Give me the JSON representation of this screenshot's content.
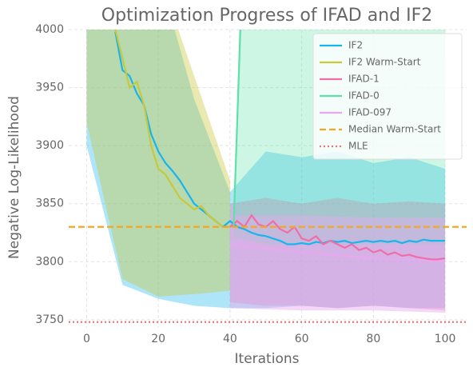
{
  "chart_data": {
    "type": "line",
    "title": "Optimization Progress of IFAD and IF2",
    "xlabel": "Iterations",
    "ylabel": "Negative Log-Likelihood",
    "xlim": [
      -5,
      106
    ],
    "ylim": [
      3743,
      4000
    ],
    "xticks": [
      0,
      20,
      40,
      60,
      80,
      100
    ],
    "yticks": [
      3750,
      3800,
      3850,
      3900,
      3950,
      4000
    ],
    "grid": true,
    "legend": "upper right",
    "series": [
      {
        "name": "IF2",
        "color": "#18b4ee",
        "x": [
          8,
          10,
          12,
          14,
          16,
          18,
          20,
          22,
          24,
          26,
          28,
          30,
          32,
          34,
          36,
          38,
          40,
          42,
          44,
          46,
          48,
          50,
          52,
          54,
          56,
          58,
          60,
          62,
          64,
          66,
          68,
          70,
          72,
          74,
          76,
          78,
          80,
          82,
          84,
          86,
          88,
          90,
          92,
          94,
          96,
          98,
          100
        ],
        "values": [
          3998,
          3965,
          3960,
          3945,
          3935,
          3910,
          3895,
          3885,
          3878,
          3870,
          3860,
          3850,
          3845,
          3840,
          3835,
          3830,
          3835,
          3830,
          3828,
          3825,
          3823,
          3822,
          3820,
          3818,
          3815,
          3815,
          3816,
          3815,
          3817,
          3816,
          3818,
          3817,
          3818,
          3816,
          3817,
          3818,
          3817,
          3818,
          3817,
          3818,
          3816,
          3818,
          3817,
          3819,
          3818,
          3818,
          3818
        ],
        "band": {
          "x": [
            0,
            10,
            20,
            30,
            40,
            50,
            60,
            70,
            80,
            90,
            100
          ],
          "lower": [
            3900,
            3780,
            3768,
            3762,
            3760,
            3760,
            3762,
            3760,
            3762,
            3760,
            3760
          ],
          "upper": [
            4050,
            4050,
            4050,
            3940,
            3860,
            3895,
            3890,
            3895,
            3885,
            3890,
            3880
          ]
        }
      },
      {
        "name": "IF2 Warm-Start",
        "color": "#c8c83c",
        "x": [
          8,
          10,
          12,
          14,
          16,
          18,
          20,
          22,
          24,
          26,
          28,
          30,
          32,
          34,
          36,
          38,
          40
        ],
        "values": [
          4000,
          3975,
          3950,
          3955,
          3935,
          3900,
          3880,
          3875,
          3865,
          3855,
          3850,
          3845,
          3848,
          3840,
          3835,
          3830,
          3830
        ],
        "band": {
          "x": [
            0,
            10,
            20,
            30,
            40
          ],
          "lower": [
            3920,
            3785,
            3770,
            3772,
            3775
          ],
          "upper": [
            4050,
            4050,
            4050,
            3960,
            3870
          ]
        }
      },
      {
        "name": "IFAD-1",
        "color": "#f06ea8",
        "x": [
          40,
          42,
          44,
          46,
          48,
          50,
          52,
          54,
          56,
          58,
          60,
          62,
          64,
          66,
          68,
          70,
          72,
          74,
          76,
          78,
          80,
          82,
          84,
          86,
          88,
          90,
          92,
          94,
          96,
          98,
          100
        ],
        "values": [
          3830,
          3835,
          3830,
          3840,
          3832,
          3830,
          3835,
          3828,
          3825,
          3830,
          3820,
          3818,
          3822,
          3815,
          3818,
          3815,
          3812,
          3815,
          3810,
          3812,
          3808,
          3810,
          3806,
          3808,
          3805,
          3806,
          3804,
          3803,
          3802,
          3802,
          3803
        ],
        "band": {
          "x": [
            40,
            50,
            60,
            70,
            80,
            90,
            100
          ],
          "lower": [
            3765,
            3762,
            3762,
            3760,
            3762,
            3760,
            3758
          ],
          "upper": [
            3850,
            3855,
            3850,
            3855,
            3850,
            3852,
            3850
          ]
        }
      },
      {
        "name": "IFAD-0",
        "color": "#5ee0a8",
        "x": [
          41,
          42,
          43
        ],
        "values": [
          3830,
          3920,
          4010
        ],
        "band": {
          "x": [
            41,
            43,
            50,
            60,
            70,
            80,
            90,
            100
          ],
          "lower": [
            3820,
            3820,
            3815,
            3815,
            3815,
            3815,
            3815,
            3815
          ],
          "upper": [
            3830,
            4050,
            4050,
            4050,
            4050,
            4050,
            4050,
            4050
          ]
        }
      },
      {
        "name": "IFAD-097",
        "color": "#e8a8f0",
        "x": [
          40,
          60,
          80,
          100
        ],
        "values": [
          3815,
          3808,
          3803,
          3800
        ],
        "band": {
          "x": [
            40,
            60,
            80,
            100
          ],
          "lower": [
            3760,
            3758,
            3758,
            3756
          ],
          "upper": [
            3840,
            3840,
            3838,
            3838
          ]
        }
      }
    ],
    "hlines": [
      {
        "name": "Median Warm-Start",
        "value": 3830,
        "color": "#f5a623",
        "style": "dashed"
      },
      {
        "name": "MLE",
        "value": 3748,
        "color": "#e87878",
        "style": "dotted"
      }
    ]
  }
}
